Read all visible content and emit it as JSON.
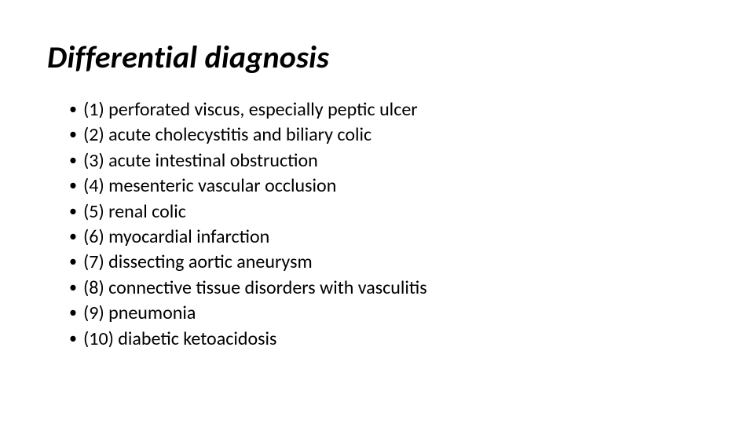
{
  "slide": {
    "title": "Differential diagnosis",
    "title_fontsize": 40,
    "title_style": "italic bold",
    "body_fontsize": 24,
    "background_color": "#ffffff",
    "text_color": "#000000",
    "bullet_char": "•",
    "items": [
      "(1) perforated viscus, especially peptic ulcer",
      "(2) acute cholecystitis and biliary colic",
      "(3) acute intestinal obstruction",
      "(4) mesenteric vascular occlusion",
      "(5) renal colic",
      "(6) myocardial infarction",
      "(7) dissecting aortic aneurysm",
      "(8) connective tissue disorders with vasculitis",
      "(9) pneumonia",
      "(10) diabetic ketoacidosis"
    ]
  }
}
